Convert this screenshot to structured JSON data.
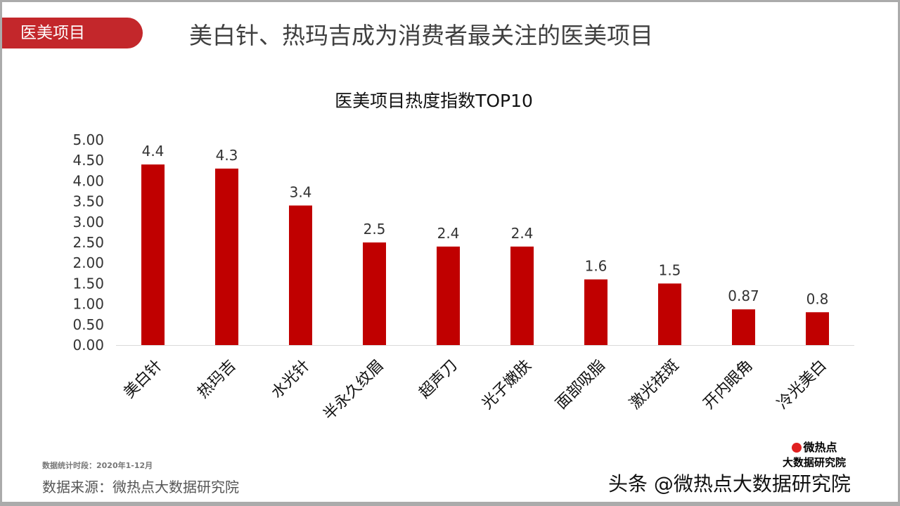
{
  "header": {
    "tag": "医美项目",
    "headline": "美白针、热玛吉成为消费者最关注的医美项目"
  },
  "footer": {
    "period": "数据统计时段：2020年1-12月",
    "source": "数据来源：微热点大数据研究院",
    "logo_line1": "微热点",
    "logo_line2": "大数据研究院",
    "watermark": "头条 @微热点大数据研究院"
  },
  "chart_data": {
    "type": "bar",
    "title": "医美项目热度指数TOP10",
    "categories": [
      "美白针",
      "热玛吉",
      "水光针",
      "半永久纹眉",
      "超声刀",
      "光子嫩肤",
      "面部吸脂",
      "激光祛斑",
      "开内眼角",
      "冷光美白"
    ],
    "values": [
      4.4,
      4.3,
      3.4,
      2.5,
      2.4,
      2.4,
      1.6,
      1.5,
      0.87,
      0.8
    ],
    "ylim": [
      0,
      5
    ],
    "yticks": [
      "0.00",
      "0.50",
      "1.00",
      "1.50",
      "2.00",
      "2.50",
      "3.00",
      "3.50",
      "4.00",
      "4.50",
      "5.00"
    ],
    "grid": false,
    "bar_color": "#c00000"
  }
}
